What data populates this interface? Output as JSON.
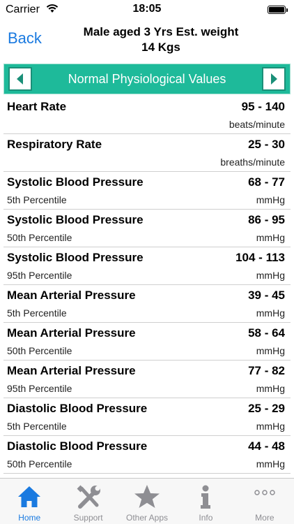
{
  "status_bar": {
    "carrier": "Carrier",
    "time": "18:05",
    "wifi_icon": "wifi-icon",
    "battery_icon": "battery-icon"
  },
  "nav": {
    "back_label": "Back",
    "title": "Male aged 3 Yrs  Est. weight\n14 Kgs"
  },
  "section": {
    "title": "Normal Physiological Values",
    "prev_icon": "arrow-left-icon",
    "next_icon": "arrow-right-icon",
    "accent_color": "#1eba9a"
  },
  "rows": [
    {
      "name": "Heart Rate",
      "value": "95 - 140",
      "sub": "",
      "unit": "beats/minute"
    },
    {
      "name": "Respiratory Rate",
      "value": "25 - 30",
      "sub": "",
      "unit": "breaths/minute"
    },
    {
      "name": "Systolic Blood Pressure",
      "value": "68 - 77",
      "sub": "5th Percentile",
      "unit": "mmHg"
    },
    {
      "name": "Systolic Blood Pressure",
      "value": "86 - 95",
      "sub": "50th Percentile",
      "unit": "mmHg"
    },
    {
      "name": "Systolic Blood Pressure",
      "value": "104 - 113",
      "sub": "95th Percentile",
      "unit": "mmHg"
    },
    {
      "name": "Mean Arterial Pressure",
      "value": "39 - 45",
      "sub": "5th Percentile",
      "unit": "mmHg"
    },
    {
      "name": "Mean Arterial Pressure",
      "value": "58 - 64",
      "sub": "50th Percentile",
      "unit": "mmHg"
    },
    {
      "name": "Mean Arterial Pressure",
      "value": "77 - 82",
      "sub": "95th Percentile",
      "unit": "mmHg"
    },
    {
      "name": "Diastolic Blood Pressure",
      "value": "25 - 29",
      "sub": "5th Percentile",
      "unit": "mmHg"
    },
    {
      "name": "Diastolic Blood Pressure",
      "value": "44 - 48",
      "sub": "50th Percentile",
      "unit": "mmHg"
    }
  ],
  "tabs": [
    {
      "label": "Home",
      "icon": "home-icon",
      "active": true
    },
    {
      "label": "Support",
      "icon": "tools-icon",
      "active": false
    },
    {
      "label": "Other Apps",
      "icon": "star-icon",
      "active": false
    },
    {
      "label": "Info",
      "icon": "info-icon",
      "active": false
    },
    {
      "label": "More",
      "icon": "more-icon",
      "active": false
    }
  ]
}
